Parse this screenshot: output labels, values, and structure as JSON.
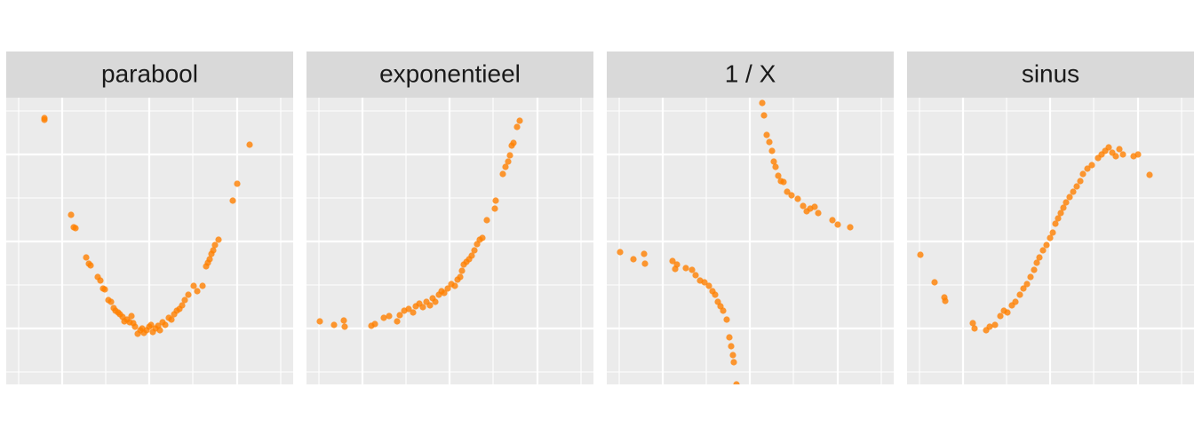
{
  "chart_data": [
    {
      "type": "scatter",
      "title": "parabool",
      "color": "#ff7f00",
      "grid": true,
      "xlim": [
        0,
        323
      ],
      "ylim": [
        0,
        323
      ],
      "xticks": [
        63,
        161,
        260
      ],
      "xticks_minor": [
        14,
        112,
        210,
        309
      ],
      "yticks": [
        63,
        161,
        259
      ],
      "yticks_minor": [
        14,
        112,
        210,
        308
      ],
      "x": [
        43,
        43,
        73,
        76,
        78,
        90,
        93,
        95,
        103,
        106,
        109,
        111,
        115,
        118,
        121,
        123,
        126,
        128,
        131,
        133,
        136,
        139,
        141,
        143,
        145,
        148,
        151,
        153,
        155,
        158,
        161,
        163,
        165,
        168,
        171,
        173,
        176,
        179,
        183,
        186,
        189,
        192,
        195,
        198,
        201,
        205,
        211,
        215,
        221,
        225,
        227,
        229,
        231,
        233,
        235,
        239,
        255,
        260,
        274
      ],
      "y": [
        300,
        298,
        191,
        177,
        176,
        143,
        136,
        134,
        121,
        117,
        108,
        107,
        95,
        93,
        86,
        83,
        81,
        79,
        76,
        71,
        73,
        70,
        77,
        69,
        65,
        57,
        61,
        63,
        58,
        61,
        65,
        67,
        59,
        63,
        66,
        61,
        70,
        67,
        75,
        73,
        79,
        83,
        85,
        89,
        95,
        101,
        111,
        105,
        111,
        133,
        137,
        141,
        147,
        151,
        157,
        163,
        207,
        226,
        270
      ]
    },
    {
      "type": "scatter",
      "title": "exponentieel",
      "color": "#ff7f00",
      "grid": true,
      "xlim": [
        0,
        323
      ],
      "ylim": [
        0,
        323
      ],
      "xticks": [
        63,
        161,
        260
      ],
      "xticks_minor": [
        14,
        112,
        210,
        309
      ],
      "yticks": [
        63,
        161,
        259
      ],
      "yticks_minor": [
        14,
        112,
        210,
        308
      ],
      "x": [
        15,
        31,
        42,
        43,
        73,
        77,
        87,
        93,
        102,
        105,
        110,
        115,
        120,
        123,
        127,
        131,
        135,
        139,
        142,
        145,
        149,
        152,
        155,
        159,
        163,
        167,
        170,
        173,
        175,
        177,
        180,
        183,
        186,
        189,
        192,
        195,
        198,
        203,
        212,
        213,
        221,
        224,
        227,
        229,
        231,
        233,
        237,
        240
      ],
      "y": [
        71,
        67,
        72,
        65,
        66,
        68,
        75,
        77,
        71,
        78,
        83,
        85,
        81,
        88,
        91,
        87,
        93,
        89,
        97,
        93,
        101,
        105,
        103,
        108,
        113,
        111,
        118,
        121,
        128,
        135,
        138,
        141,
        145,
        151,
        158,
        163,
        165,
        185,
        198,
        207,
        237,
        245,
        251,
        258,
        269,
        272,
        290,
        297
      ]
    },
    {
      "type": "scatter",
      "title": "1 / X",
      "color": "#ff7f00",
      "grid": true,
      "xlim": [
        0,
        323
      ],
      "ylim": [
        0,
        323
      ],
      "xticks": [
        63,
        161,
        260
      ],
      "xticks_minor": [
        14,
        112,
        210,
        309
      ],
      "yticks": [
        63,
        161,
        259
      ],
      "yticks_minor": [
        14,
        112,
        210,
        308
      ],
      "x": [
        15,
        30,
        42,
        43,
        74,
        77,
        79,
        89,
        96,
        100,
        105,
        110,
        115,
        119,
        122,
        125,
        128,
        131,
        135,
        138,
        140,
        142,
        143,
        146,
        175,
        177,
        180,
        183,
        186,
        188,
        190,
        193,
        196,
        199,
        203,
        208,
        215,
        221,
        225,
        229,
        234,
        238,
        254,
        260,
        274
      ],
      "y": [
        149,
        141,
        147,
        136,
        139,
        130,
        135,
        131,
        129,
        123,
        117,
        115,
        111,
        105,
        101,
        93,
        88,
        83,
        73,
        53,
        43,
        33,
        25,
        0,
        317,
        303,
        281,
        273,
        263,
        251,
        245,
        235,
        229,
        228,
        217,
        213,
        209,
        201,
        195,
        198,
        200,
        193,
        185,
        180,
        177
      ]
    },
    {
      "type": "scatter",
      "title": "sinus",
      "color": "#ff7f00",
      "grid": true,
      "xlim": [
        0,
        323
      ],
      "ylim": [
        0,
        323
      ],
      "xticks": [
        63,
        161,
        260
      ],
      "xticks_minor": [
        14,
        112,
        210,
        309
      ],
      "yticks": [
        63,
        161,
        259
      ],
      "yticks_minor": [
        14,
        112,
        210,
        308
      ],
      "x": [
        15,
        31,
        42,
        43,
        74,
        76,
        89,
        93,
        99,
        105,
        109,
        113,
        118,
        122,
        127,
        131,
        135,
        139,
        143,
        146,
        149,
        153,
        157,
        161,
        164,
        167,
        170,
        173,
        176,
        179,
        183,
        187,
        191,
        195,
        198,
        203,
        208,
        215,
        219,
        223,
        227,
        231,
        235,
        239,
        243,
        255,
        260,
        273
      ],
      "y": [
        146,
        115,
        98,
        94,
        69,
        63,
        61,
        65,
        67,
        77,
        83,
        81,
        89,
        93,
        101,
        108,
        113,
        121,
        129,
        137,
        143,
        151,
        157,
        165,
        171,
        181,
        187,
        193,
        199,
        205,
        211,
        217,
        223,
        229,
        237,
        243,
        247,
        255,
        259,
        263,
        267,
        261,
        257,
        265,
        259,
        257,
        259,
        236
      ]
    }
  ]
}
